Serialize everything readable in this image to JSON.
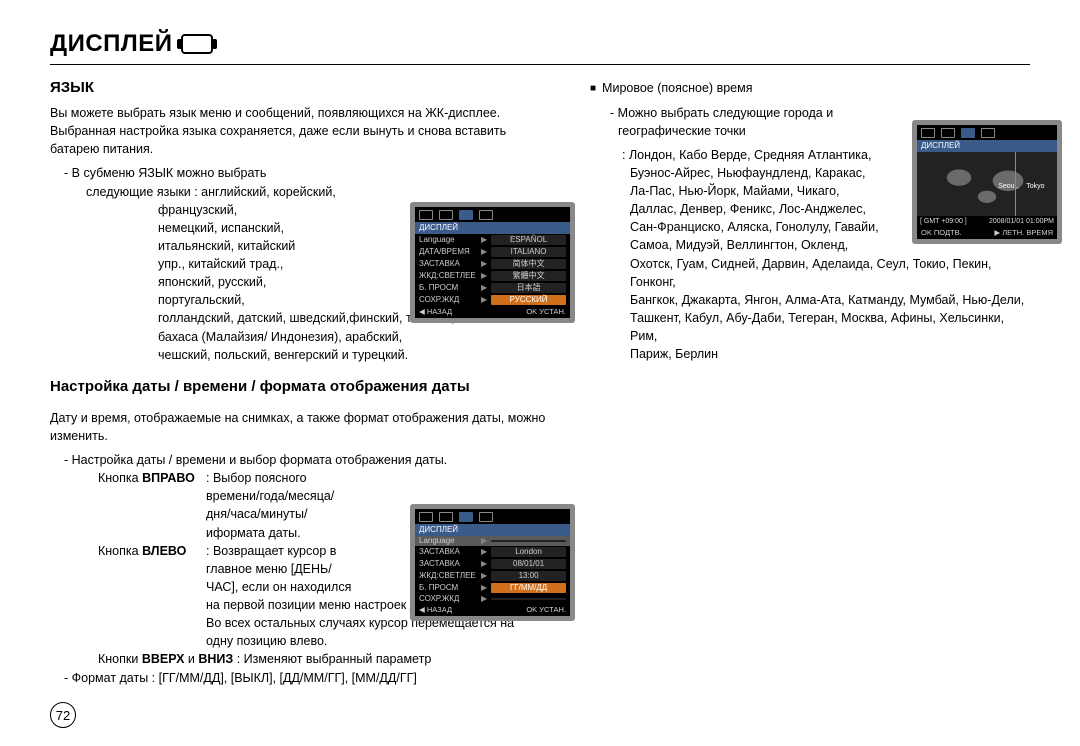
{
  "page_title": "ДИСПЛЕЙ",
  "page_number": "72",
  "left": {
    "lang_heading": "ЯЗЫК",
    "lang_intro": "Вы можете выбрать язык меню и сообщений, появляющихся на ЖК-дисплее. Выбранная настройка языка сохраняется, даже если вынуть и снова вставить батарею питания.",
    "lang_sub1": "- В субменю ЯЗЫК можно выбрать",
    "lang_sub2": "следующие языки : английский, корейский,",
    "lang_list1": "французский,",
    "lang_list2": "немецкий, испанский,",
    "lang_list3": "итальянский, китайский",
    "lang_list4": "упр., китайский трад.,",
    "lang_list5": "японский, русский,",
    "lang_list6": "португальский,",
    "lang_tail1": "голландский, датский, шведский,финский,  тайский,",
    "lang_tail2": "бахаса (Малайзия/ Индонезия),  арабский,",
    "lang_tail3": "чешский,  польский,  венгерский  и  турецкий.",
    "dt_heading": "Настройка даты / времени / формата отображения даты",
    "dt_intro": "Дату и время, отображаемые на снимках, а также формат отображения даты, можно изменить.",
    "dt_sub": "- Настройка даты / времени и выбор формата отображения даты.",
    "dt_right_label": "Кнопка  ВПРАВО",
    "dt_right_desc1": ": Выбор поясного",
    "dt_right_desc2": "времени/года/месяца/",
    "dt_right_desc3": "дня/часа/минуты/",
    "dt_right_desc4": "иформата даты.",
    "dt_left_label": "Кнопка ВЛЕВО",
    "dt_left_desc1": ": Возвращает курсор в",
    "dt_left_desc2": "главное меню  [ДЕНЬ/",
    "dt_left_desc3": "ЧАС], если он находился",
    "dt_left_tail1": "на первой позиции меню настроек даты и времени.",
    "dt_left_tail2": "Во всех остальных случаях курсор перемещается на",
    "dt_left_tail3": "одну позицию влево.",
    "dt_updn": "Кнопки ВВЕРХ и ВНИЗ : Изменяют выбранный параметр",
    "dt_format": "- Формат  даты : [ГГ/ММ/ДД],  [ВЫКЛ],  [ДД/ММ/ГГ],  [ММ/ДД/ГГ]"
  },
  "right": {
    "world_heading": "Мировое (поясное) время",
    "world_sub1": "- Можно выбрать следующие города и",
    "world_sub2": "географические точки",
    "cities1": ": Лондон, Кабо Верде, Средняя Атлантика,",
    "cities2": "Буэнос-Айрес, Ньюфаундленд, Каракас,",
    "cities3": "Ла-Пас, Нью-Йорк, Майами, Чикаго,",
    "cities4": "Даллас, Денвер, Феникс, Лос-Анджелес,",
    "cities5": "Сан-Франциско, Аляска, Гонолулу, Гавайи,",
    "cities6": "Самоа, Мидуэй, Веллингтон, Окленд,",
    "cities7": "Охотск, Гуам, Сидней, Дарвин, Аделаида, Сеул, Токио, Пекин, Гонконг,",
    "cities8": "Бангкок, Джакарта, Янгон, Алма-Ата, Катманду, Мумбай, Нью-Дели,",
    "cities9": "Ташкент, Кабул, Абу-Даби, Тегеран, Москва, Афины, Хельсинки, Рим,",
    "cities10": "Париж, Берлин"
  },
  "lcd_lang": {
    "header": "ДИСПЛЕЙ",
    "rows": [
      {
        "label": "Language",
        "val": "ESPAÑOL",
        "sel": false
      },
      {
        "label": "ДАТА/ВРЕМЯ",
        "val": "ITALIANO",
        "sel": false
      },
      {
        "label": "ЗАСТАВКА",
        "val": "简体中文",
        "sel": false
      },
      {
        "label": "ЖКД:СВЕТЛЕЕ",
        "val": "繁體中文",
        "sel": false
      },
      {
        "label": "Б. ПРОСМ",
        "val": "日本語",
        "sel": false
      },
      {
        "label": "СОХР.ЖКД",
        "val": "РУССКИЙ",
        "sel": true
      }
    ],
    "back": "◀  НАЗАД",
    "ok": "OK  УСТАН."
  },
  "lcd_date": {
    "header": "ДИСПЛЕЙ",
    "rows": [
      {
        "label": "Language",
        "val": "",
        "sel": false,
        "hi": true
      },
      {
        "label": "ЗАСТАВКА",
        "val": "London",
        "sel": false
      },
      {
        "label": "ЗАСТАВКА",
        "val": "08/01/01",
        "sel": false
      },
      {
        "label": "ЖКД:СВЕТЛЕЕ",
        "val": "13:00",
        "sel": false
      },
      {
        "label": "Б. ПРОСМ",
        "val": "ГГ/ММ/ДД",
        "sel": true
      },
      {
        "label": "СОХР.ЖКД",
        "val": "",
        "sel": false
      }
    ],
    "back": "◀  НАЗАД",
    "ok": "OK  УСТАН."
  },
  "lcd_world": {
    "header": "ДИСПЛЕЙ",
    "city1": "Seoul,",
    "city2": "Tokyo",
    "gmt": "[ GMT +09:00 ]",
    "date": "2008/01/01  01:00PM",
    "ok": "OK  ПОДТВ.",
    "dst": "ЛЕТН. ВРЕМЯ",
    "dst_icon": "▶"
  }
}
